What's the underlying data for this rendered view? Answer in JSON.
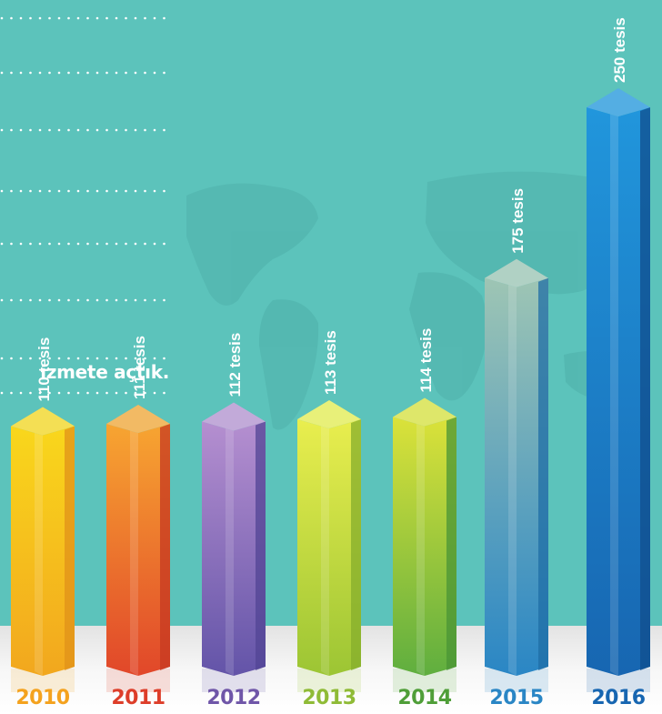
{
  "caption": "izmete açtık.",
  "chart_data": {
    "type": "bar",
    "categories": [
      "2010",
      "2011",
      "2012",
      "2013",
      "2014",
      "2015",
      "2016"
    ],
    "values": [
      110,
      111,
      112,
      113,
      114,
      175,
      250
    ],
    "value_labels": [
      "110 tesis",
      "111 tesis",
      "112 tesis",
      "113 tesis",
      "114 tesis",
      "175 tesis",
      "250 tesis"
    ],
    "title": "",
    "xlabel": "",
    "ylabel": "",
    "colors": {
      "background": "#5cc3bb",
      "bars": [
        {
          "top": "#f9d71c",
          "bottom": "#f2a71e",
          "dark": "#e0921a"
        },
        {
          "top": "#f7a531",
          "bottom": "#e1472a",
          "dark": "#c63a22"
        },
        {
          "top": "#b58fd0",
          "bottom": "#6354a8",
          "dark": "#524494"
        },
        {
          "top": "#e9ee4e",
          "bottom": "#9cc534",
          "dark": "#86ad2c"
        },
        {
          "top": "#dbe23a",
          "bottom": "#5fae3f",
          "dark": "#4a9435"
        },
        {
          "top": "#9ec5b4",
          "bottom": "#2a86c5",
          "dark": "#1f6ea6"
        },
        {
          "top": "#2196dc",
          "bottom": "#1766b1",
          "dark": "#104e8c"
        }
      ],
      "years": [
        "#f4a21e",
        "#dd3e2a",
        "#6f56a8",
        "#8fbb36",
        "#4f9e38",
        "#2a86c5",
        "#1766b1"
      ]
    }
  }
}
